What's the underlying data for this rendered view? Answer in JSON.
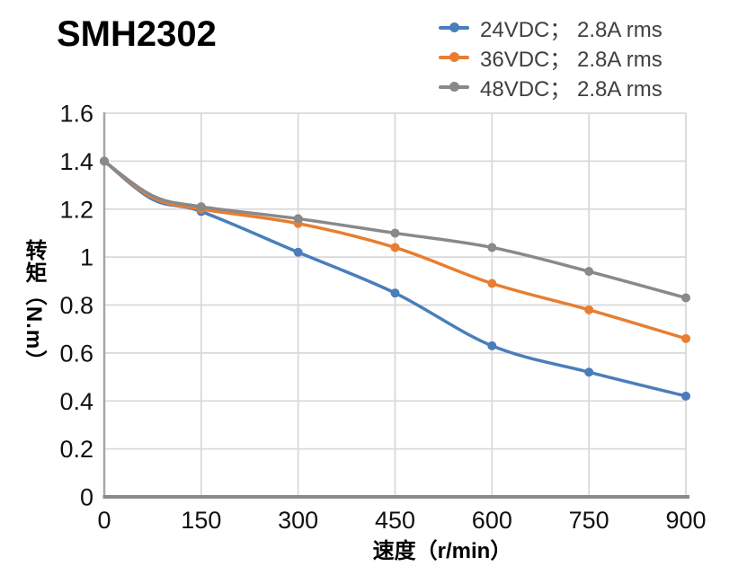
{
  "chart_data": {
    "type": "line",
    "title": "SMH2302",
    "xlabel": "速度（r/min）",
    "ylabel": "转矩（N.m）",
    "x": [
      0,
      150,
      300,
      450,
      600,
      750,
      900
    ],
    "series": [
      {
        "name": "24VDC； 2.8A rms",
        "color": "#4a7ebb",
        "values": [
          1.4,
          1.19,
          1.02,
          0.85,
          0.63,
          0.52,
          0.42
        ]
      },
      {
        "name": "36VDC； 2.8A rms",
        "color": "#e87e31",
        "values": [
          1.4,
          1.2,
          1.14,
          1.04,
          0.89,
          0.78,
          0.66
        ]
      },
      {
        "name": "48VDC； 2.8A rms",
        "color": "#898989",
        "values": [
          1.4,
          1.21,
          1.16,
          1.1,
          1.04,
          0.94,
          0.83
        ]
      }
    ],
    "xlim": [
      0,
      900
    ],
    "ylim": [
      0,
      1.6
    ],
    "x_ticks": [
      "0",
      "150",
      "300",
      "450",
      "600",
      "750",
      "900"
    ],
    "y_ticks": [
      "0",
      "0.2",
      "0.4",
      "0.6",
      "0.8",
      "1",
      "1.2",
      "1.4",
      "1.6"
    ],
    "grid": true,
    "line_style": "smooth",
    "markers": true,
    "legend_position": "top-right",
    "colors": {
      "gridline": "#d9d9d9",
      "y_axis_line": "#a6a6a6",
      "x_axis_line": "#8a8a8a",
      "tick_text": "#111111",
      "legend_text": "#404040",
      "title_text": "#000000"
    }
  }
}
